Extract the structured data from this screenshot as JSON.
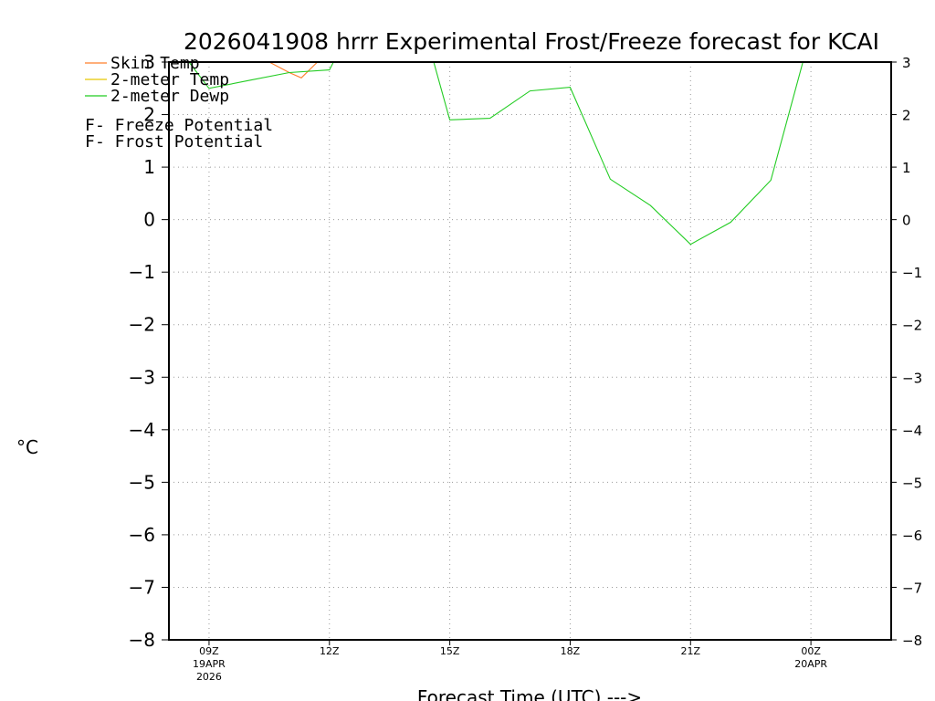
{
  "chart_data": {
    "type": "line",
    "title": "2026041908 hrrr Experimental Frost/Freeze forecast for KCAI",
    "ylabel": "°C",
    "xlabel": "Forecast Time (UTC) --->",
    "ylim": [
      -8,
      3
    ],
    "xlim_hours": [
      8,
      26
    ],
    "grid": true,
    "yticks": [
      3,
      2,
      1,
      0,
      -1,
      -2,
      -3,
      -4,
      -5,
      -6,
      -7,
      -8
    ],
    "xticks": [
      {
        "hour": 9,
        "label": "09Z",
        "sub1": "19APR",
        "sub2": "2026"
      },
      {
        "hour": 12,
        "label": "12Z",
        "sub1": "",
        "sub2": ""
      },
      {
        "hour": 15,
        "label": "15Z",
        "sub1": "",
        "sub2": ""
      },
      {
        "hour": 18,
        "label": "18Z",
        "sub1": "",
        "sub2": ""
      },
      {
        "hour": 21,
        "label": "21Z",
        "sub1": "",
        "sub2": ""
      },
      {
        "hour": 24,
        "label": "00Z",
        "sub1": "20APR",
        "sub2": ""
      }
    ],
    "series": [
      {
        "name": "Skin Temp",
        "color": "#ff7f2a",
        "x": [
          10.5,
          11,
          11.3,
          11.7
        ],
        "y": [
          3.0,
          2.8,
          2.7,
          3.0
        ]
      },
      {
        "name": "2-meter Temp",
        "color": "#e6c800",
        "x": [],
        "y": []
      },
      {
        "name": "2-meter Dewp",
        "color": "#22cc22",
        "x": [
          8.5,
          9,
          10,
          11,
          12,
          12.1,
          14.6,
          15,
          16,
          17,
          18,
          19,
          20,
          21,
          22,
          23,
          23.8
        ],
        "y": [
          3.0,
          2.5,
          2.65,
          2.8,
          2.85,
          3.0,
          3.0,
          1.9,
          1.93,
          2.45,
          2.52,
          0.77,
          0.27,
          -0.47,
          -0.05,
          0.75,
          3.0
        ]
      }
    ],
    "annotations": [
      {
        "symbol": "F",
        "text": " - Freeze Potential",
        "color": "#e040c0"
      },
      {
        "symbol": "F",
        "text": " - Frost Potential",
        "color": "#5a5aff"
      }
    ]
  }
}
